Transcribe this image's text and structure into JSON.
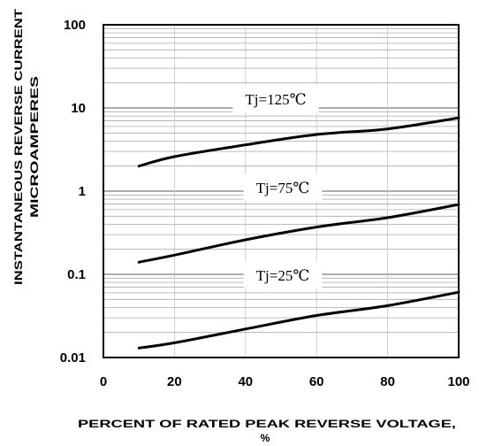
{
  "chart_data": {
    "type": "line",
    "title": "",
    "xlabel": [
      "PERCENT OF RATED PEAK REVERSE VOLTAGE,",
      "%"
    ],
    "ylabel": [
      "INSTANTANEOUS REVERSE CURRENT",
      "MICROAMPERES"
    ],
    "x": [
      10,
      20,
      40,
      60,
      80,
      100
    ],
    "series": [
      {
        "name": "Tj=125℃",
        "values": [
          2.0,
          2.6,
          3.6,
          4.8,
          5.6,
          7.6
        ]
      },
      {
        "name": "Tj=75℃",
        "values": [
          0.14,
          0.17,
          0.26,
          0.37,
          0.48,
          0.69
        ]
      },
      {
        "name": "Tj=25℃",
        "values": [
          0.013,
          0.015,
          0.022,
          0.032,
          0.042,
          0.061
        ]
      }
    ],
    "xlim": [
      0,
      100
    ],
    "ylim": [
      0.01,
      100
    ],
    "yscale": "log",
    "xticks": [
      "0",
      "20",
      "40",
      "60",
      "80",
      "100"
    ],
    "yticks": [
      "100",
      "10",
      "1",
      "0.1",
      "0.01"
    ],
    "grid": true,
    "legend": "none",
    "colors": {
      "line": "#000000",
      "grid_minor": "#a8a8a8",
      "grid_major": "#7a7a7a",
      "grid_vertical": "#c4c4c4",
      "frame": "#000000"
    }
  }
}
